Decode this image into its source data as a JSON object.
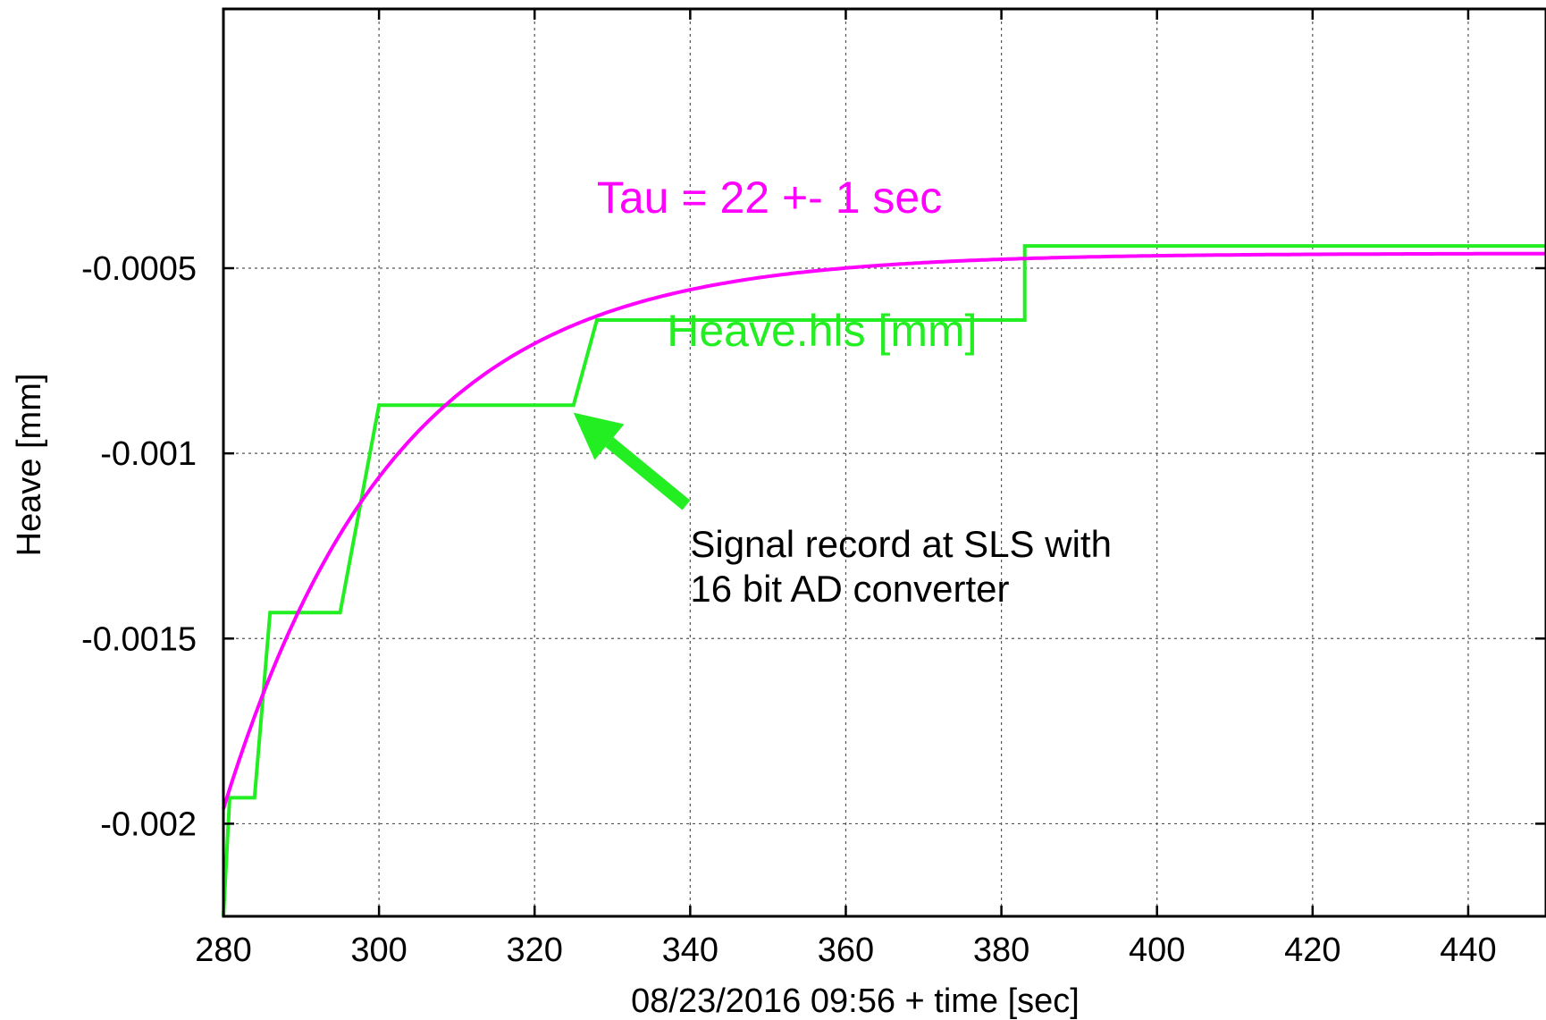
{
  "chart_data": {
    "type": "line",
    "title": "",
    "xlabel": "08/23/2016 09:56 + time [sec]",
    "ylabel": "Heave [mm]",
    "xlim": [
      280,
      450
    ],
    "ylim": [
      -0.00225,
      0.0002
    ],
    "xticks": [
      280,
      300,
      320,
      340,
      360,
      380,
      400,
      420,
      440
    ],
    "xtick_labels": [
      "280",
      "300",
      "320",
      "340",
      "360",
      "380",
      "400",
      "420",
      "440"
    ],
    "yticks": [
      -0.0005,
      -0.001,
      -0.0015,
      -0.002
    ],
    "ytick_labels": [
      "-0.0005",
      "-0.001",
      "-0.0015",
      "-0.002"
    ],
    "grid": true,
    "series": [
      {
        "name": "Heave.hls [mm]",
        "color": "#22ee22",
        "style": "step",
        "x": [
          280,
          280.8,
          284,
          286,
          295,
          300,
          325,
          328,
          383,
          383,
          450
        ],
        "y": [
          -0.00225,
          -0.00193,
          -0.00193,
          -0.00143,
          -0.00143,
          -0.00087,
          -0.00087,
          -0.00064,
          -0.00064,
          -0.00044,
          -0.00044
        ]
      },
      {
        "name": "Tau = 22 +- 1 sec",
        "color": "#ff00ff",
        "style": "fit",
        "model": "exponential",
        "tau": 22,
        "t0": 280,
        "y_start": -0.00196,
        "y_inf": -0.00046
      }
    ],
    "annotations": [
      {
        "id": "tau",
        "text": "Tau = 22 +- 1 sec",
        "color": "#ff00ff",
        "x": 328,
        "y": -0.00035
      },
      {
        "id": "heave",
        "text": "Heave.hls [mm]",
        "color": "#22ee22",
        "x": 337,
        "y": -0.00071
      },
      {
        "id": "signal1",
        "text": "Signal record at SLS with",
        "color": "#000000",
        "x": 340,
        "y": -0.00128
      },
      {
        "id": "signal2",
        "text": "16 bit AD converter",
        "color": "#000000",
        "x": 340,
        "y": -0.0014
      }
    ],
    "arrow": {
      "color": "#22ee22",
      "from": [
        339.5,
        -0.00114
      ],
      "to": [
        325,
        -0.00089
      ]
    }
  }
}
